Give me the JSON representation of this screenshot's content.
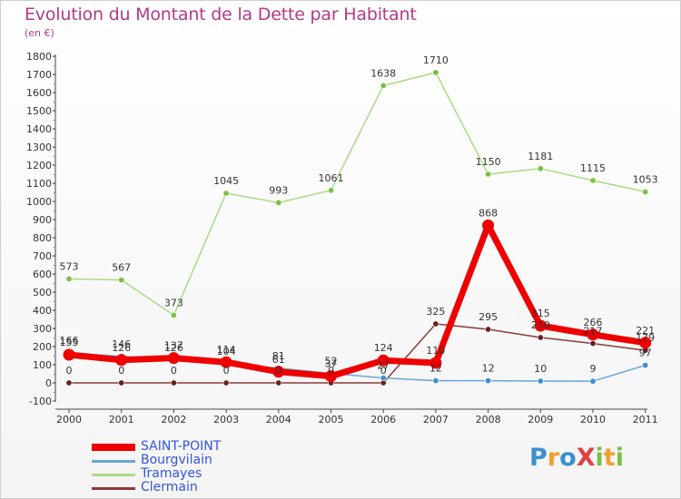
{
  "title": "Evolution du Montant de la Dette par Habitant",
  "subtitle": "(en €)",
  "logo": {
    "text": "ProXiti",
    "letters": [
      {
        "ch": "P",
        "color": "#3a8fd0"
      },
      {
        "ch": "r",
        "color": "#f0a030"
      },
      {
        "ch": "o",
        "color": "#3a8fd0"
      },
      {
        "ch": "X",
        "color": "#e04040"
      },
      {
        "ch": "i",
        "color": "#7ac043"
      },
      {
        "ch": "t",
        "color": "#f0a030"
      },
      {
        "ch": "i",
        "color": "#7ac043"
      }
    ]
  },
  "chart_data": {
    "type": "line",
    "title": "Evolution du Montant de la Dette par Habitant",
    "subtitle": "(en €)",
    "x": [
      "2000",
      "2001",
      "2002",
      "2003",
      "2004",
      "2005",
      "2006",
      "2007",
      "2008",
      "2009",
      "2010",
      "2011"
    ],
    "ylim": [
      -100,
      1800
    ],
    "yticks": [
      -100,
      0,
      100,
      200,
      300,
      400,
      500,
      600,
      700,
      800,
      900,
      1000,
      1100,
      1200,
      1300,
      1400,
      1500,
      1600,
      1700,
      1800
    ],
    "grid": false,
    "legend": "bottom-left",
    "series": [
      {
        "name": "SAINT-POINT",
        "color": "#ee0000",
        "marker_color": "#ee0000",
        "values": [
          155,
          126,
          137,
          114,
          61,
          37,
          124,
          110,
          868,
          315,
          266,
          221
        ],
        "labels": [
          "155",
          "126",
          "137",
          "114",
          "61",
          "37",
          "124",
          "110",
          "868",
          "315",
          "266",
          "221"
        ]
      },
      {
        "name": "Bourgvilain",
        "color": "#6aa6d6",
        "marker_color": "#3d8fd1",
        "values": [
          166,
          146,
          126,
          104,
          81,
          52,
          27,
          12,
          12,
          10,
          9,
          97
        ],
        "labels": [
          "166",
          "146",
          "126",
          "104",
          "81",
          "52",
          "27",
          "12",
          "12",
          "10",
          "9",
          "97"
        ]
      },
      {
        "name": "Tramayes",
        "color": "#a8dc80",
        "marker_color": "#7ac043",
        "values": [
          573,
          567,
          373,
          1045,
          993,
          1061,
          1638,
          1710,
          1150,
          1181,
          1115,
          1053
        ],
        "labels": [
          "573",
          "567",
          "373",
          "1045",
          "993",
          "1061",
          "1638",
          "1710",
          "1150",
          "1181",
          "1115",
          "1053"
        ]
      },
      {
        "name": "Clermain",
        "color": "#8a3a3a",
        "marker_color": "#6b1f1f",
        "values": [
          0,
          0,
          0,
          0,
          0,
          0,
          0,
          325,
          295,
          250,
          217,
          179
        ],
        "labels": [
          "0",
          "0",
          "0",
          "0",
          "0",
          "0",
          "0",
          "325",
          "295",
          "250",
          "217",
          "179"
        ]
      }
    ]
  }
}
